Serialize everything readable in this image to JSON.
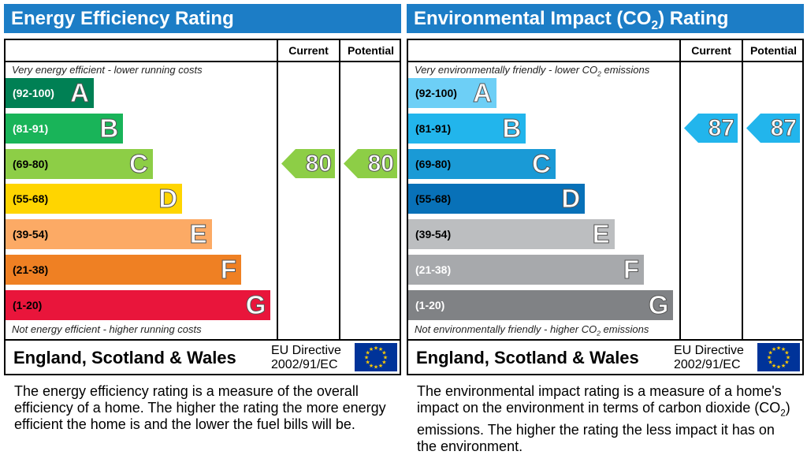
{
  "chart_data": [
    {
      "type": "bar",
      "title": "Energy Efficiency Rating",
      "columns": [
        "Current",
        "Potential"
      ],
      "top_note": "Very energy efficient - lower running costs",
      "bottom_note": "Not energy efficient - higher running costs",
      "bands": [
        {
          "range": "(92-100)",
          "letter": "A",
          "color": "#008054",
          "range_color": "#ffffff"
        },
        {
          "range": "(81-91)",
          "letter": "B",
          "color": "#19b459",
          "range_color": "#ffffff"
        },
        {
          "range": "(69-80)",
          "letter": "C",
          "color": "#8dce46",
          "range_color": "#000000"
        },
        {
          "range": "(55-68)",
          "letter": "D",
          "color": "#ffd500",
          "range_color": "#000000"
        },
        {
          "range": "(39-54)",
          "letter": "E",
          "color": "#fcaa65",
          "range_color": "#000000"
        },
        {
          "range": "(21-38)",
          "letter": "F",
          "color": "#ef8023",
          "range_color": "#000000"
        },
        {
          "range": "(1-20)",
          "letter": "G",
          "color": "#e9153b",
          "range_color": "#000000"
        }
      ],
      "current": {
        "value": 80,
        "band": "C",
        "color": "#8dce46"
      },
      "potential": {
        "value": 80,
        "band": "C",
        "color": "#8dce46"
      },
      "country": "England, Scotland & Wales",
      "directive_1": "EU Directive",
      "directive_2": "2002/91/EC",
      "description": "The energy efficiency rating is a measure of the overall efficiency of a home. The higher the rating the more energy efficient the home is and the lower the fuel bills will be."
    },
    {
      "type": "bar",
      "title": "Environmental Impact (CO₂) Rating",
      "columns": [
        "Current",
        "Potential"
      ],
      "top_note": "Very environmentally friendly - lower CO₂ emissions",
      "bottom_note": "Not environmentally friendly - higher CO₂ emissions",
      "bands": [
        {
          "range": "(92-100)",
          "letter": "A",
          "color": "#6dcff6",
          "range_color": "#000000"
        },
        {
          "range": "(81-91)",
          "letter": "B",
          "color": "#22b5ec",
          "range_color": "#000000"
        },
        {
          "range": "(69-80)",
          "letter": "C",
          "color": "#1a9ad6",
          "range_color": "#000000"
        },
        {
          "range": "(55-68)",
          "letter": "D",
          "color": "#0871b8",
          "range_color": "#000000"
        },
        {
          "range": "(39-54)",
          "letter": "E",
          "color": "#bcbec0",
          "range_color": "#000000"
        },
        {
          "range": "(21-38)",
          "letter": "F",
          "color": "#a7a9ac",
          "range_color": "#ffffff"
        },
        {
          "range": "(1-20)",
          "letter": "G",
          "color": "#808285",
          "range_color": "#ffffff"
        }
      ],
      "current": {
        "value": 87,
        "band": "B",
        "color": "#22b5ec"
      },
      "potential": {
        "value": 87,
        "band": "B",
        "color": "#22b5ec"
      },
      "country": "England, Scotland & Wales",
      "directive_1": "EU Directive",
      "directive_2": "2002/91/EC",
      "description": "The environmental impact rating is a measure of a home's impact on the environment in terms of carbon dioxide (CO₂) emissions. The higher the rating the less impact it has on the environment."
    }
  ]
}
